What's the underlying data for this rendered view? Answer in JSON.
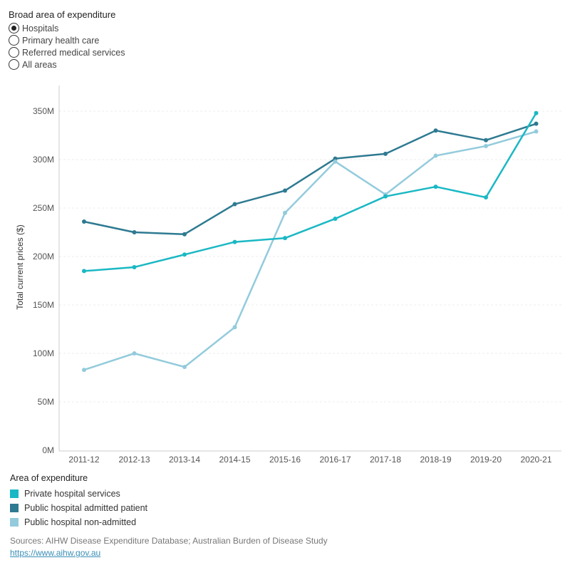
{
  "filter": {
    "title": "Broad area of expenditure",
    "options": [
      {
        "label": "Hospitals",
        "checked": true
      },
      {
        "label": "Primary health care",
        "checked": false
      },
      {
        "label": "Referred medical services",
        "checked": false
      },
      {
        "label": "All areas",
        "checked": false
      }
    ]
  },
  "chart_data": {
    "type": "line",
    "ylabel": "Total current prices ($)",
    "xlabel": "",
    "categories": [
      "2011-12",
      "2012-13",
      "2013-14",
      "2014-15",
      "2015-16",
      "2016-17",
      "2017-18",
      "2018-19",
      "2019-20",
      "2020-21"
    ],
    "yticks": [
      "0M",
      "50M",
      "100M",
      "150M",
      "200M",
      "250M",
      "300M",
      "350M"
    ],
    "ylim": [
      0,
      375
    ],
    "grid": true,
    "series": [
      {
        "name": "Public hospital admitted patient",
        "color": "#2e7a91",
        "values": [
          236,
          225,
          223,
          254,
          268,
          301,
          306,
          330,
          320,
          337
        ]
      },
      {
        "name": "Public hospital non-admitted",
        "color": "#93cbdc",
        "values": [
          83,
          100,
          86,
          127,
          245,
          298,
          264,
          304,
          314,
          329
        ]
      },
      {
        "name": "Private hospital services",
        "color": "#1ab8c4",
        "values": [
          185,
          189,
          202,
          215,
          219,
          239,
          262,
          272,
          261,
          348
        ]
      }
    ]
  },
  "legend": {
    "title": "Area of expenditure",
    "items": [
      {
        "label": "Private hospital services",
        "color": "#1ab8c4"
      },
      {
        "label": "Public hospital admitted patient",
        "color": "#2e7a91"
      },
      {
        "label": "Public hospital non-admitted",
        "color": "#93cbdc"
      }
    ]
  },
  "footer": {
    "sources": "Sources: AIHW Disease Expenditure Database; Australian Burden of Disease Study",
    "link": "https://www.aihw.gov.au"
  }
}
